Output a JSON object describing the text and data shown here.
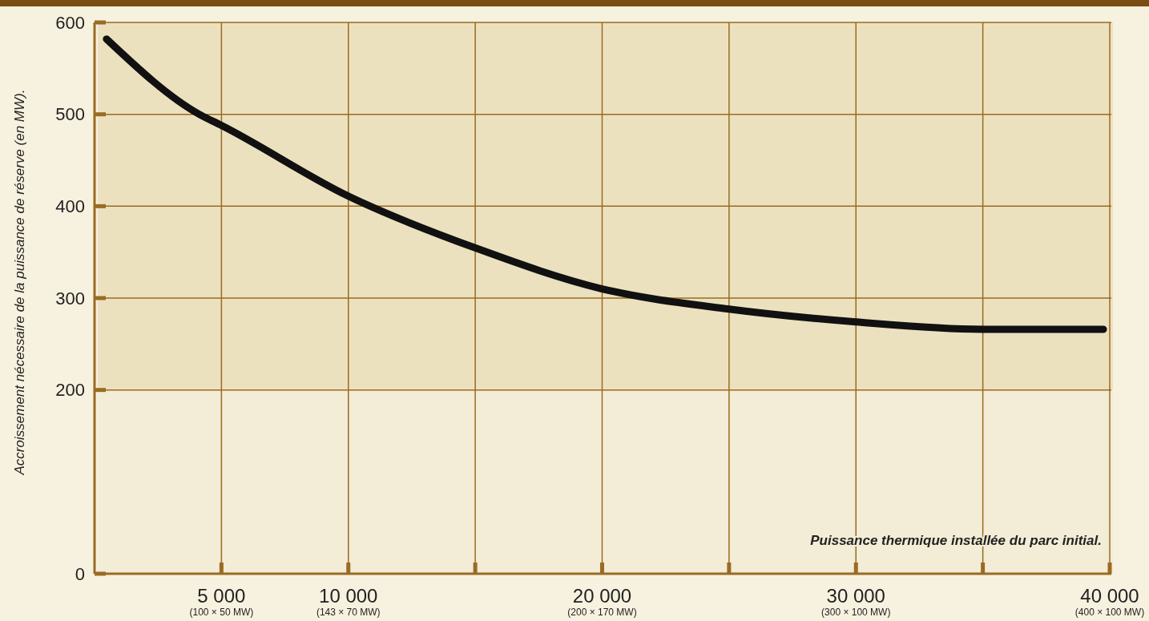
{
  "chart_data": {
    "type": "line",
    "xlabel": "Puissance thermique installée du parc initial.",
    "ylabel": "Accroissement nécessaire de la puissance de réserve (en MW).",
    "x": [
      469,
      4125,
      5000,
      10000,
      15060,
      20000,
      25000,
      30000,
      35000,
      39750
    ],
    "series": [
      {
        "color": "#111111",
        "values": [
          582,
          500,
          488,
          411,
          354,
          310,
          288,
          274,
          266,
          266
        ]
      }
    ],
    "xlim": [
      0,
      40000
    ],
    "xticks": [
      {
        "value": 5000,
        "label": "5 000"
      },
      {
        "value": 10000,
        "label": "10 000"
      },
      {
        "value": 15000,
        "label": null
      },
      {
        "value": 20000,
        "label": "20 000"
      },
      {
        "value": 25000,
        "label": null
      },
      {
        "value": 30000,
        "label": "30 000"
      },
      {
        "value": 35000,
        "label": null
      },
      {
        "value": 40000,
        "label": "40 000"
      }
    ],
    "ylim": [
      0,
      600
    ],
    "yticks": [
      0,
      200,
      300,
      400,
      500,
      600
    ],
    "annotations": [
      "(100 × 50 MW)",
      "(143 × 70 MW)",
      "(200 × 170 MW)",
      "(300 × 100 MW)",
      "(400 × 100 MW)"
    ],
    "grid": true,
    "marker": "none",
    "line_style": "solid"
  }
}
